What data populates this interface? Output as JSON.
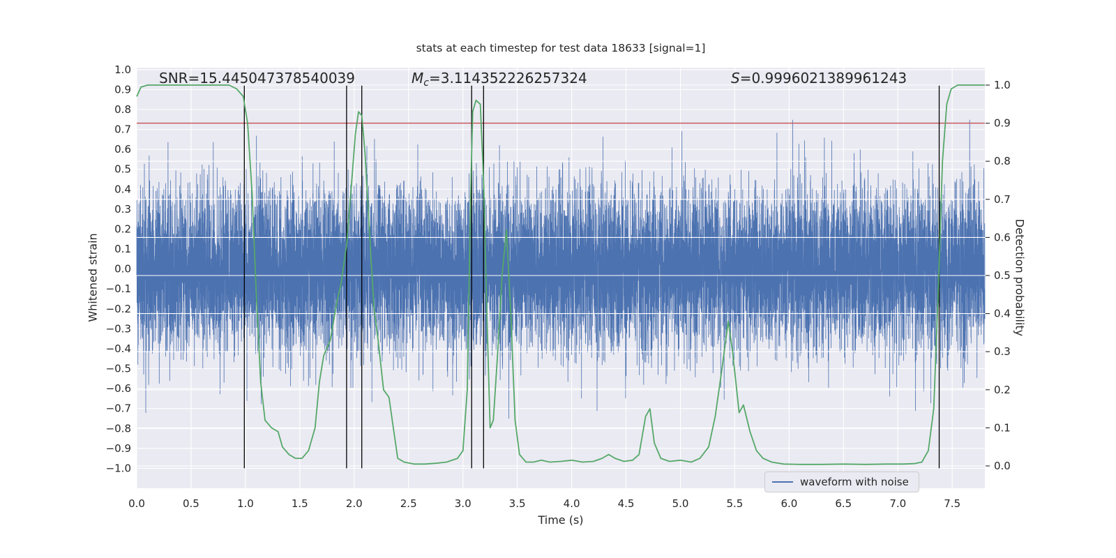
{
  "title": "stats at each timestep for test data 18633 [signal=1]",
  "annotations": {
    "snr": "SNR=15.445047378540039",
    "mc_var": "M",
    "mc_sub": "c",
    "mc_rest": "=3.114352226257324",
    "s_var": "S",
    "s_rest": "=0.9996021389961243"
  },
  "colors": {
    "background": "#eaeaf2",
    "grid": "#ffffff",
    "waveform": "#4c72b0",
    "detection": "#55a868",
    "threshold": "#c44e52",
    "event_line": "#000000",
    "text": "#262626"
  },
  "chart_data": {
    "type": "line",
    "title": "stats at each timestep for test data 18633 [signal=1]",
    "xlabel": "Time (s)",
    "ylabel_left": "Whitened strain",
    "ylabel_right": "Detection probability",
    "xlim": [
      0,
      7.8
    ],
    "ylim_left": [
      -1.1,
      1.01
    ],
    "ylim_right": [
      -0.0586,
      1.0458
    ],
    "x_ticks": [
      0.0,
      0.5,
      1.0,
      1.5,
      2.0,
      2.5,
      3.0,
      3.5,
      4.0,
      4.5,
      5.0,
      5.5,
      6.0,
      6.5,
      7.0,
      7.5
    ],
    "y_ticks_left": [
      -1.0,
      -0.9,
      -0.8,
      -0.7,
      -0.6,
      -0.5,
      -0.4,
      -0.3,
      -0.2,
      -0.1,
      0.0,
      0.1,
      0.2,
      0.3,
      0.4,
      0.5,
      0.6,
      0.7,
      0.8,
      0.9,
      1.0
    ],
    "y_ticks_right": [
      0.0,
      0.1,
      0.2,
      0.3,
      0.4,
      0.5,
      0.6,
      0.7,
      0.8,
      0.9,
      1.0
    ],
    "grid": true,
    "stats": {
      "SNR": 15.445047378540039,
      "Mc": 3.114352226257324,
      "S": 0.9996021389961243,
      "signal": 1,
      "test_data_id": 18633
    },
    "threshold": {
      "axis": "right",
      "value": 0.9
    },
    "event_times": [
      0.99,
      1.93,
      2.07,
      3.08,
      3.19,
      7.38
    ],
    "event_line_span_left_axis": [
      -1.0,
      0.92
    ],
    "legend": {
      "label": "waveform with noise",
      "position": "lower right"
    },
    "series": [
      {
        "name": "waveform with noise",
        "axis": "left",
        "color": "#4c72b0",
        "render": "gaussian-noise",
        "sigma": 0.2,
        "n_points": 12288,
        "seed": 18633
      },
      {
        "name": "detection probability",
        "axis": "right",
        "color": "#55a868",
        "points": [
          [
            0.0,
            0.97
          ],
          [
            0.04,
            0.995
          ],
          [
            0.1,
            1.0
          ],
          [
            0.3,
            1.0
          ],
          [
            0.5,
            1.0
          ],
          [
            0.7,
            1.0
          ],
          [
            0.85,
            1.0
          ],
          [
            0.92,
            0.99
          ],
          [
            0.98,
            0.97
          ],
          [
            1.02,
            0.9
          ],
          [
            1.06,
            0.72
          ],
          [
            1.1,
            0.45
          ],
          [
            1.14,
            0.22
          ],
          [
            1.18,
            0.12
          ],
          [
            1.24,
            0.1
          ],
          [
            1.3,
            0.09
          ],
          [
            1.34,
            0.05
          ],
          [
            1.4,
            0.03
          ],
          [
            1.46,
            0.02
          ],
          [
            1.52,
            0.02
          ],
          [
            1.58,
            0.04
          ],
          [
            1.64,
            0.1
          ],
          [
            1.68,
            0.22
          ],
          [
            1.72,
            0.29
          ],
          [
            1.78,
            0.33
          ],
          [
            1.84,
            0.43
          ],
          [
            1.88,
            0.48
          ],
          [
            1.93,
            0.58
          ],
          [
            1.97,
            0.72
          ],
          [
            2.01,
            0.87
          ],
          [
            2.04,
            0.93
          ],
          [
            2.07,
            0.92
          ],
          [
            2.1,
            0.82
          ],
          [
            2.14,
            0.62
          ],
          [
            2.18,
            0.42
          ],
          [
            2.22,
            0.33
          ],
          [
            2.27,
            0.2
          ],
          [
            2.32,
            0.18
          ],
          [
            2.36,
            0.1
          ],
          [
            2.4,
            0.02
          ],
          [
            2.46,
            0.01
          ],
          [
            2.55,
            0.005
          ],
          [
            2.65,
            0.005
          ],
          [
            2.75,
            0.007
          ],
          [
            2.85,
            0.01
          ],
          [
            2.95,
            0.02
          ],
          [
            3.0,
            0.04
          ],
          [
            3.04,
            0.2
          ],
          [
            3.07,
            0.7
          ],
          [
            3.09,
            0.93
          ],
          [
            3.12,
            0.96
          ],
          [
            3.16,
            0.95
          ],
          [
            3.19,
            0.75
          ],
          [
            3.22,
            0.4
          ],
          [
            3.25,
            0.1
          ],
          [
            3.28,
            0.12
          ],
          [
            3.32,
            0.3
          ],
          [
            3.36,
            0.5
          ],
          [
            3.4,
            0.62
          ],
          [
            3.44,
            0.4
          ],
          [
            3.48,
            0.12
          ],
          [
            3.52,
            0.03
          ],
          [
            3.58,
            0.01
          ],
          [
            3.65,
            0.01
          ],
          [
            3.72,
            0.015
          ],
          [
            3.8,
            0.01
          ],
          [
            3.9,
            0.012
          ],
          [
            4.0,
            0.015
          ],
          [
            4.1,
            0.01
          ],
          [
            4.2,
            0.012
          ],
          [
            4.28,
            0.02
          ],
          [
            4.34,
            0.03
          ],
          [
            4.4,
            0.02
          ],
          [
            4.48,
            0.012
          ],
          [
            4.56,
            0.015
          ],
          [
            4.62,
            0.03
          ],
          [
            4.68,
            0.13
          ],
          [
            4.72,
            0.15
          ],
          [
            4.76,
            0.06
          ],
          [
            4.82,
            0.02
          ],
          [
            4.9,
            0.012
          ],
          [
            5.0,
            0.015
          ],
          [
            5.1,
            0.01
          ],
          [
            5.18,
            0.02
          ],
          [
            5.26,
            0.05
          ],
          [
            5.32,
            0.13
          ],
          [
            5.38,
            0.25
          ],
          [
            5.44,
            0.38
          ],
          [
            5.48,
            0.3
          ],
          [
            5.54,
            0.14
          ],
          [
            5.58,
            0.16
          ],
          [
            5.64,
            0.09
          ],
          [
            5.7,
            0.04
          ],
          [
            5.76,
            0.02
          ],
          [
            5.84,
            0.01
          ],
          [
            5.95,
            0.005
          ],
          [
            6.1,
            0.004
          ],
          [
            6.3,
            0.004
          ],
          [
            6.5,
            0.005
          ],
          [
            6.7,
            0.004
          ],
          [
            6.9,
            0.005
          ],
          [
            7.05,
            0.005
          ],
          [
            7.15,
            0.006
          ],
          [
            7.22,
            0.01
          ],
          [
            7.28,
            0.04
          ],
          [
            7.33,
            0.15
          ],
          [
            7.37,
            0.45
          ],
          [
            7.41,
            0.8
          ],
          [
            7.45,
            0.95
          ],
          [
            7.49,
            0.99
          ],
          [
            7.55,
            1.0
          ],
          [
            7.65,
            1.0
          ],
          [
            7.75,
            1.0
          ],
          [
            7.8,
            1.0
          ]
        ]
      }
    ]
  }
}
